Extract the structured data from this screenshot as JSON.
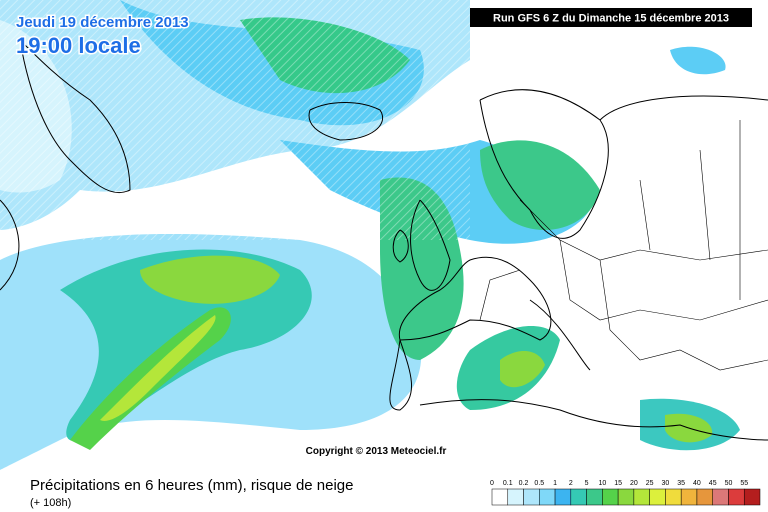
{
  "header": {
    "date": "Jeudi 19 décembre 2013",
    "time": "19:00 locale",
    "run": "Run GFS 6 Z du Dimanche 15 décembre 2013"
  },
  "footer": {
    "copyright": "Copyright © 2013 Meteociel.fr",
    "title": "Précipitations en 6 heures (mm), risque de neige",
    "offset": "(+ 108h)"
  },
  "legend": [
    {
      "label": "0",
      "color": "#ffffff"
    },
    {
      "label": "0.1",
      "color": "#d6f4fd"
    },
    {
      "label": "0.2",
      "color": "#aee6fb"
    },
    {
      "label": "0.5",
      "color": "#7fd8f8"
    },
    {
      "label": "1",
      "color": "#3cb4f0"
    },
    {
      "label": "2",
      "color": "#35c9b4"
    },
    {
      "label": "5",
      "color": "#3cc88a"
    },
    {
      "label": "10",
      "color": "#55d24a"
    },
    {
      "label": "15",
      "color": "#8ad83e"
    },
    {
      "label": "20",
      "color": "#b4e63a"
    },
    {
      "label": "25",
      "color": "#dcf03c"
    },
    {
      "label": "30",
      "color": "#f0dc3c"
    },
    {
      "label": "35",
      "color": "#f0b43c"
    },
    {
      "label": "40",
      "color": "#e6963c"
    },
    {
      "label": "45",
      "color": "#dc7878"
    },
    {
      "label": "50",
      "color": "#dc3c3c"
    },
    {
      "label": "55",
      "color": "#b41e1e"
    }
  ]
}
